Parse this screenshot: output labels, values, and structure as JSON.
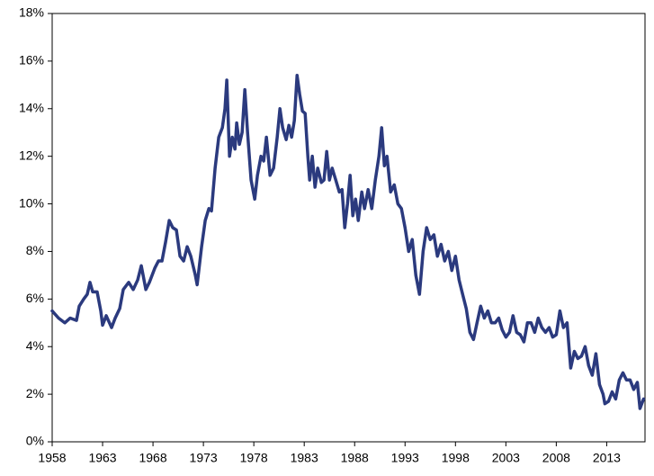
{
  "chart_data": {
    "type": "line",
    "xlim": [
      1958,
      2016.8
    ],
    "xticks": [
      1958,
      1963,
      1968,
      1973,
      1978,
      1983,
      1988,
      1993,
      1998,
      2003,
      2008,
      2013
    ],
    "ylim": [
      0,
      18
    ],
    "yticks": [
      {
        "value": 0,
        "label": "0%"
      },
      {
        "value": 2,
        "label": "2%"
      },
      {
        "value": 4,
        "label": "4%"
      },
      {
        "value": 6,
        "label": "6%"
      },
      {
        "value": 8,
        "label": "8%"
      },
      {
        "value": 10,
        "label": "10%"
      },
      {
        "value": 12,
        "label": "12%"
      },
      {
        "value": 14,
        "label": "14%"
      },
      {
        "value": 16,
        "label": "16%"
      },
      {
        "value": 18,
        "label": "18%"
      }
    ],
    "grid": false,
    "x": [
      1958.0,
      1958.63,
      1959.25,
      1959.79,
      1960.41,
      1960.68,
      1961.13,
      1961.48,
      1961.75,
      1962.02,
      1962.46,
      1962.82,
      1963.0,
      1963.36,
      1963.89,
      1964.25,
      1964.7,
      1965.05,
      1965.59,
      1966.04,
      1966.48,
      1966.84,
      1967.29,
      1967.64,
      1968.18,
      1968.54,
      1968.89,
      1969.25,
      1969.61,
      1969.96,
      1970.32,
      1970.68,
      1971.04,
      1971.39,
      1971.75,
      1972.2,
      1972.38,
      1972.82,
      1973.18,
      1973.54,
      1973.8,
      1974.16,
      1974.52,
      1974.88,
      1975.14,
      1975.32,
      1975.59,
      1975.86,
      1976.13,
      1976.3,
      1976.57,
      1976.84,
      1977.11,
      1977.38,
      1977.73,
      1978.09,
      1978.36,
      1978.71,
      1978.98,
      1979.25,
      1979.61,
      1979.96,
      1980.32,
      1980.59,
      1980.86,
      1981.21,
      1981.48,
      1981.75,
      1982.02,
      1982.29,
      1982.55,
      1982.82,
      1983.09,
      1983.36,
      1983.54,
      1983.8,
      1984.07,
      1984.34,
      1984.7,
      1984.96,
      1985.23,
      1985.5,
      1985.77,
      1986.13,
      1986.48,
      1986.75,
      1987.02,
      1987.29,
      1987.55,
      1987.82,
      1988.09,
      1988.36,
      1988.71,
      1988.98,
      1989.34,
      1989.7,
      1990.05,
      1990.41,
      1990.68,
      1990.95,
      1991.21,
      1991.57,
      1991.93,
      1992.29,
      1992.64,
      1993.0,
      1993.36,
      1993.71,
      1994.07,
      1994.43,
      1994.79,
      1995.14,
      1995.5,
      1995.86,
      1996.21,
      1996.57,
      1996.93,
      1997.29,
      1997.64,
      1998.0,
      1998.36,
      1998.71,
      1999.07,
      1999.43,
      1999.79,
      2000.14,
      2000.5,
      2000.86,
      2001.21,
      2001.57,
      2001.93,
      2002.29,
      2002.64,
      2003.0,
      2003.36,
      2003.71,
      2004.07,
      2004.43,
      2004.79,
      2005.14,
      2005.5,
      2005.86,
      2006.21,
      2006.57,
      2006.93,
      2007.29,
      2007.64,
      2008.0,
      2008.36,
      2008.71,
      2009.07,
      2009.43,
      2009.79,
      2010.14,
      2010.5,
      2010.86,
      2011.21,
      2011.57,
      2011.93,
      2012.29,
      2012.64,
      2012.82,
      2013.18,
      2013.54,
      2013.89,
      2014.25,
      2014.61,
      2014.96,
      2015.32,
      2015.68,
      2016.04,
      2016.3,
      2016.66
    ],
    "series": [
      {
        "color": "#2b3a7e",
        "values": [
          5.5,
          5.2,
          5.0,
          5.2,
          5.1,
          5.7,
          6.0,
          6.2,
          6.7,
          6.3,
          6.3,
          5.5,
          4.9,
          5.3,
          4.8,
          5.2,
          5.6,
          6.4,
          6.7,
          6.4,
          6.8,
          7.4,
          6.4,
          6.7,
          7.3,
          7.6,
          7.6,
          8.4,
          9.3,
          9.0,
          8.9,
          7.8,
          7.6,
          8.2,
          7.8,
          7.0,
          6.6,
          8.2,
          9.3,
          9.8,
          9.7,
          11.5,
          12.8,
          13.2,
          14.0,
          15.2,
          12.0,
          12.8,
          12.3,
          13.4,
          12.5,
          13.0,
          14.8,
          13.0,
          11.0,
          10.2,
          11.2,
          12.0,
          11.8,
          12.8,
          11.2,
          11.5,
          12.8,
          14.0,
          13.2,
          12.7,
          13.3,
          12.8,
          13.5,
          15.4,
          14.6,
          13.9,
          13.8,
          12.0,
          11.0,
          12.0,
          10.7,
          11.5,
          10.9,
          11.0,
          12.2,
          11.0,
          11.5,
          11.0,
          10.5,
          10.6,
          9.0,
          10.0,
          11.2,
          9.5,
          10.2,
          9.3,
          10.5,
          9.8,
          10.6,
          9.8,
          11.0,
          12.0,
          13.2,
          11.6,
          12.0,
          10.5,
          10.8,
          10.0,
          9.8,
          9.0,
          8.0,
          8.5,
          7.0,
          6.2,
          8.0,
          9.0,
          8.5,
          8.7,
          7.8,
          8.3,
          7.6,
          8.0,
          7.2,
          7.8,
          6.8,
          6.2,
          5.6,
          4.6,
          4.3,
          5.0,
          5.7,
          5.2,
          5.5,
          5.0,
          5.0,
          5.2,
          4.7,
          4.4,
          4.6,
          5.3,
          4.6,
          4.5,
          4.2,
          5.0,
          5.0,
          4.6,
          5.2,
          4.8,
          4.6,
          4.8,
          4.4,
          4.5,
          5.5,
          4.8,
          5.0,
          3.1,
          3.8,
          3.5,
          3.6,
          4.0,
          3.2,
          2.8,
          3.7,
          2.4,
          2.0,
          1.6,
          1.7,
          2.1,
          1.8,
          2.6,
          2.9,
          2.6,
          2.6,
          2.2,
          2.5,
          1.4,
          1.8
        ]
      }
    ]
  }
}
